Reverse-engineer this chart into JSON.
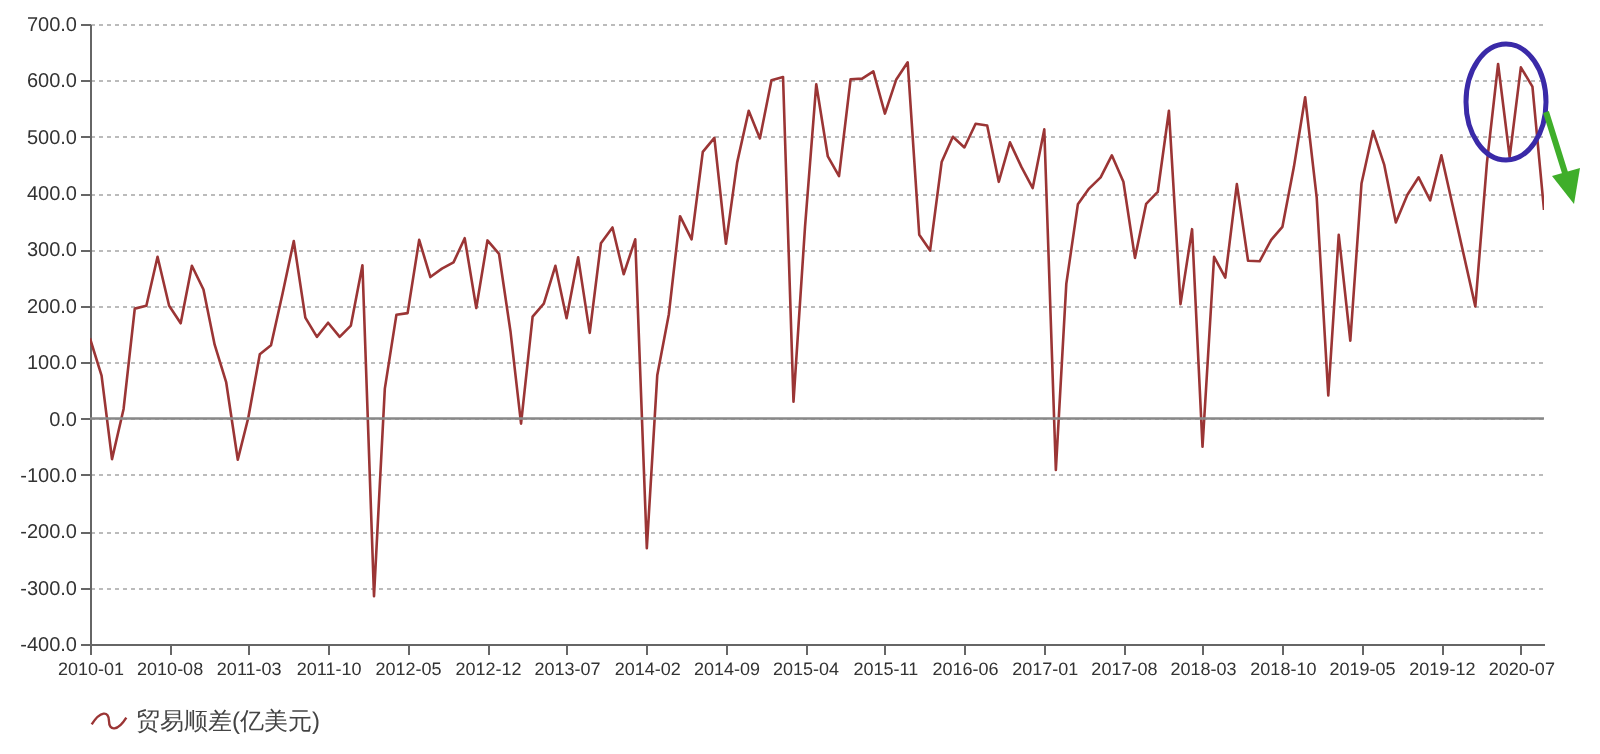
{
  "chart_data": {
    "type": "line",
    "x": [
      "2010-01",
      "2010-02",
      "2010-03",
      "2010-04",
      "2010-05",
      "2010-06",
      "2010-07",
      "2010-08",
      "2010-09",
      "2010-10",
      "2010-11",
      "2010-12",
      "2011-01",
      "2011-02",
      "2011-03",
      "2011-04",
      "2011-05",
      "2011-06",
      "2011-07",
      "2011-08",
      "2011-09",
      "2011-10",
      "2011-11",
      "2011-12",
      "2012-01",
      "2012-02",
      "2012-03",
      "2012-04",
      "2012-05",
      "2012-06",
      "2012-07",
      "2012-08",
      "2012-09",
      "2012-10",
      "2012-11",
      "2012-12",
      "2013-01",
      "2013-02",
      "2013-03",
      "2013-04",
      "2013-05",
      "2013-06",
      "2013-07",
      "2013-08",
      "2013-09",
      "2013-10",
      "2013-11",
      "2013-12",
      "2014-01",
      "2014-02",
      "2014-03",
      "2014-04",
      "2014-05",
      "2014-06",
      "2014-07",
      "2014-08",
      "2014-09",
      "2014-10",
      "2014-11",
      "2014-12",
      "2015-01",
      "2015-02",
      "2015-03",
      "2015-04",
      "2015-05",
      "2015-06",
      "2015-07",
      "2015-08",
      "2015-09",
      "2015-10",
      "2015-11",
      "2015-12",
      "2016-01",
      "2016-02",
      "2016-03",
      "2016-04",
      "2016-05",
      "2016-06",
      "2016-07",
      "2016-08",
      "2016-09",
      "2016-10",
      "2016-11",
      "2016-12",
      "2017-01",
      "2017-02",
      "2017-03",
      "2017-04",
      "2017-05",
      "2017-06",
      "2017-07",
      "2017-08",
      "2017-09",
      "2017-10",
      "2017-11",
      "2017-12",
      "2018-01",
      "2018-02",
      "2018-03",
      "2018-04",
      "2018-05",
      "2018-06",
      "2018-07",
      "2018-08",
      "2018-09",
      "2018-10",
      "2018-11",
      "2018-12",
      "2019-01",
      "2019-02",
      "2019-03",
      "2019-04",
      "2019-05",
      "2019-06",
      "2019-07",
      "2019-08",
      "2019-09",
      "2019-10",
      "2019-11",
      "2019-12",
      "2020-03",
      "2020-04",
      "2020-05",
      "2020-06",
      "2020-07",
      "2020-08",
      "2020-09"
    ],
    "series": [
      {
        "name": "贸易顺差(亿美元)",
        "color": "#9b3535",
        "values": [
          142,
          76,
          -72,
          17,
          195,
          200,
          287,
          200,
          169,
          271,
          229,
          131,
          64,
          -73,
          1,
          114,
          130,
          222,
          315,
          179,
          145,
          170,
          145,
          165,
          272,
          -315,
          53,
          184,
          187,
          317,
          251,
          266,
          277,
          320,
          196,
          316,
          292,
          153,
          -9,
          181,
          204,
          271,
          178,
          286,
          152,
          311,
          339,
          256,
          318,
          -230,
          77,
          185,
          359,
          318,
          473,
          498,
          310,
          454,
          546,
          497,
          600,
          606,
          30,
          341,
          593,
          465,
          430,
          602,
          603,
          616,
          541,
          601,
          632,
          326,
          298,
          455,
          500,
          481,
          523,
          520,
          420,
          490,
          446,
          409,
          513,
          -91,
          239,
          380,
          408,
          428,
          467,
          420,
          285,
          381,
          402,
          546,
          203,
          336,
          -50,
          287,
          250,
          416,
          280,
          279,
          317,
          340,
          447,
          570,
          392,
          41,
          326,
          138,
          417,
          510,
          450,
          348,
          397,
          428,
          387,
          467,
          199,
          453,
          629,
          464,
          623,
          589,
          370
        ]
      }
    ],
    "xlim": [
      "2010-01",
      "2020-09"
    ],
    "xticks": [
      "2010-01",
      "2010-08",
      "2011-03",
      "2011-10",
      "2012-05",
      "2012-12",
      "2013-07",
      "2014-02",
      "2014-09",
      "2015-04",
      "2015-11",
      "2016-06",
      "2017-01",
      "2017-08",
      "2018-03",
      "2018-10",
      "2019-05",
      "2019-12",
      "2020-07"
    ],
    "ylim": [
      -400,
      700
    ],
    "yticks": [
      {
        "value": -400,
        "label": "-400.0"
      },
      {
        "value": -300,
        "label": "-300.0"
      },
      {
        "value": -200,
        "label": "-200.0"
      },
      {
        "value": -100,
        "label": "-100.0"
      },
      {
        "value": 0,
        "label": "0.0"
      },
      {
        "value": 100,
        "label": "100.0"
      },
      {
        "value": 200,
        "label": "200.0"
      },
      {
        "value": 300,
        "label": "300.0"
      },
      {
        "value": 400,
        "label": "400.0"
      },
      {
        "value": 500,
        "label": "500.0"
      },
      {
        "value": 600,
        "label": "600.0"
      },
      {
        "value": 700,
        "label": "700.0"
      }
    ],
    "ref_lines": [
      {
        "axis": "y",
        "value": 0,
        "color": "#888888"
      }
    ],
    "grid": "y",
    "legend": "bottom",
    "marker": "none",
    "line_style": "solid"
  }
}
